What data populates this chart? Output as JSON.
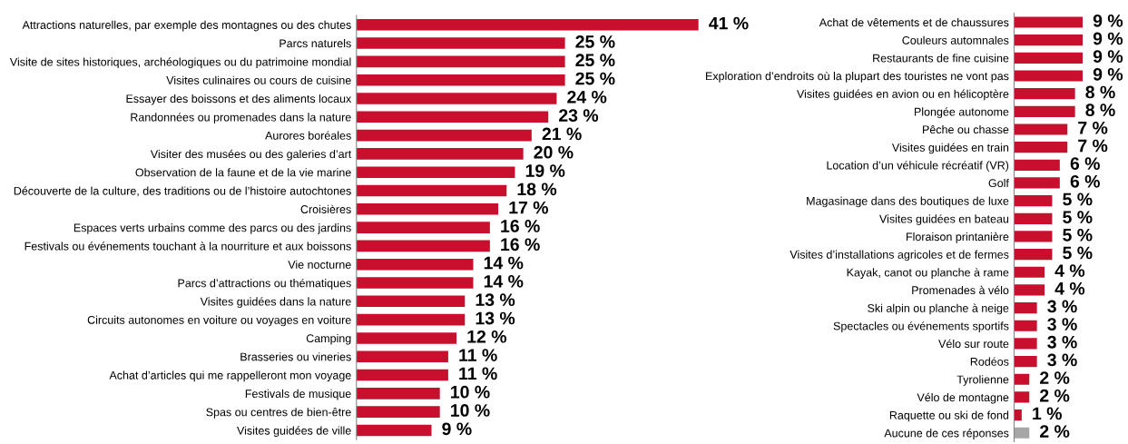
{
  "chart_data": [
    {
      "type": "bar",
      "orientation": "horizontal",
      "color": "#c8102e",
      "tick_labels": "y",
      "grid": false,
      "legend": false,
      "categories": [
        "Attractions naturelles, par exemple des montagnes ou des chutes",
        "Parcs naturels",
        "Visite de sites historiques, archéologiques ou du patrimoine mondial",
        "Visites culinaires ou cours de cuisine",
        "Essayer des boissons et des aliments locaux",
        "Randonnées ou promenades dans la nature",
        "Aurores boréales",
        "Visiter des musées ou des galeries d’art",
        "Observation de la faune et de la vie marine",
        "Découverte de la culture, des traditions ou de l’histoire autochtones",
        "Croisières",
        "Espaces verts urbains comme des parcs ou des jardins",
        "Festivals ou événements touchant à la nourriture et aux boissons",
        "Vie nocturne",
        "Parcs d’attractions ou thématiques",
        "Visites guidées dans la nature",
        "Circuits autonomes en voiture ou voyages en voiture",
        "Camping",
        "Brasseries ou vineries",
        "Achat d’articles qui me rappelleront mon voyage",
        "Festivals de musique",
        "Spas ou centres de bien-être",
        "Visites guidées de ville"
      ],
      "values": [
        41,
        25,
        25,
        25,
        24,
        23,
        21,
        20,
        19,
        18,
        17,
        16,
        16,
        14,
        14,
        13,
        13,
        12,
        11,
        11,
        10,
        10,
        9
      ],
      "value_labels": [
        "41 %",
        "25 %",
        "25 %",
        "25 %",
        "24 %",
        "23 %",
        "21 %",
        "20 %",
        "19 %",
        "18 %",
        "17 %",
        "16 %",
        "16 %",
        "14 %",
        "14 %",
        "13 %",
        "13 %",
        "12 %",
        "11 %",
        "11 %",
        "10 %",
        "10 %",
        "9 %"
      ]
    },
    {
      "type": "bar",
      "orientation": "horizontal",
      "tick_labels": "y",
      "grid": false,
      "legend": false,
      "categories": [
        "Achat de vêtements et de chaussures",
        "Couleurs automnales",
        "Restaurants de fine cuisine",
        "Exploration d’endroits où la plupart des touristes ne vont pas",
        "Visites guidées en avion ou en hélicoptère",
        "Plongée autonome",
        "Pêche ou chasse",
        "Visites guidées en train",
        "Location d’un véhicule récréatif (VR)",
        "Golf",
        "Magasinage dans des boutiques de luxe",
        "Visites guidées en bateau",
        "Floraison printanière",
        "Visites d’installations agricoles et de fermes",
        "Kayak, canot ou planche à rame",
        "Promenades à vélo",
        "Ski alpin ou planche à neige",
        "Spectacles ou événements sportifs",
        "Vélo sur route",
        "Rodéos",
        "Tyrolienne",
        "Vélo de montagne",
        "Raquette ou ski de fond",
        "Aucune de ces réponses"
      ],
      "values": [
        9,
        9,
        9,
        9,
        8,
        8,
        7,
        7,
        6,
        6,
        5,
        5,
        5,
        5,
        4,
        4,
        3,
        3,
        3,
        3,
        2,
        2,
        1,
        2
      ],
      "colors": [
        "#c8102e",
        "#c8102e",
        "#c8102e",
        "#c8102e",
        "#c8102e",
        "#c8102e",
        "#c8102e",
        "#c8102e",
        "#c8102e",
        "#c8102e",
        "#c8102e",
        "#c8102e",
        "#c8102e",
        "#c8102e",
        "#c8102e",
        "#c8102e",
        "#c8102e",
        "#c8102e",
        "#c8102e",
        "#c8102e",
        "#c8102e",
        "#c8102e",
        "#c8102e",
        "#a6a6a6"
      ],
      "value_labels": [
        "9 %",
        "9 %",
        "9 %",
        "9 %",
        "8 %",
        "8 %",
        "7 %",
        "7 %",
        "6 %",
        "6 %",
        "5 %",
        "5 %",
        "5 %",
        "5 %",
        "4 %",
        "4 %",
        "3 %",
        "3 %",
        "3 %",
        "3 %",
        "2 %",
        "2 %",
        "1 %",
        "2 %"
      ]
    }
  ]
}
